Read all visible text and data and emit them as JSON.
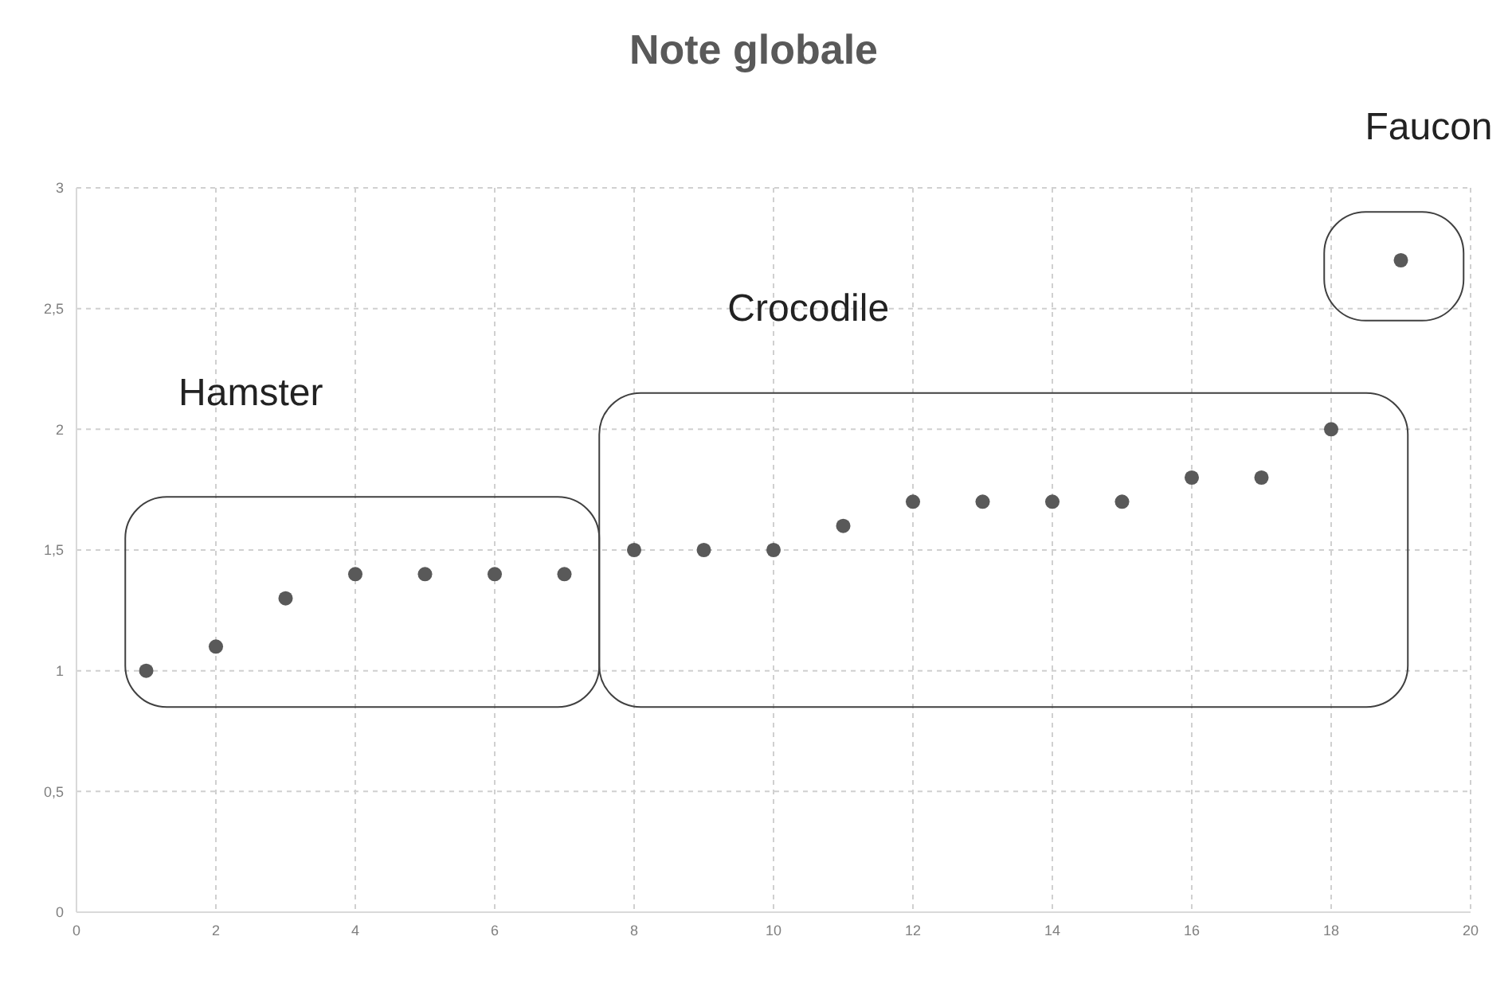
{
  "chart_data": {
    "type": "scatter",
    "title": "Note globale",
    "x": [
      1,
      2,
      3,
      4,
      5,
      6,
      7,
      8,
      9,
      10,
      11,
      12,
      13,
      14,
      15,
      16,
      17,
      18,
      19
    ],
    "values": [
      1,
      1.1,
      1.3,
      1.4,
      1.4,
      1.4,
      1.4,
      1.5,
      1.5,
      1.5,
      1.6,
      1.7,
      1.7,
      1.7,
      1.7,
      1.8,
      1.8,
      2,
      2.7
    ],
    "color": "#595959",
    "marker": "circle",
    "xlim": [
      0,
      20
    ],
    "xticks": [
      0,
      2,
      4,
      6,
      8,
      10,
      12,
      14,
      16,
      18,
      20
    ],
    "ylim": [
      0,
      3
    ],
    "yticks": [
      0,
      {
        "value": 0.5,
        "label": "0,5"
      },
      1,
      {
        "value": 1.5,
        "label": "1,5"
      },
      2,
      {
        "value": 2.5,
        "label": "2,5"
      },
      3
    ],
    "grid": true,
    "annotations": [
      "Hamster",
      "Crocodile",
      "Faucon"
    ]
  }
}
